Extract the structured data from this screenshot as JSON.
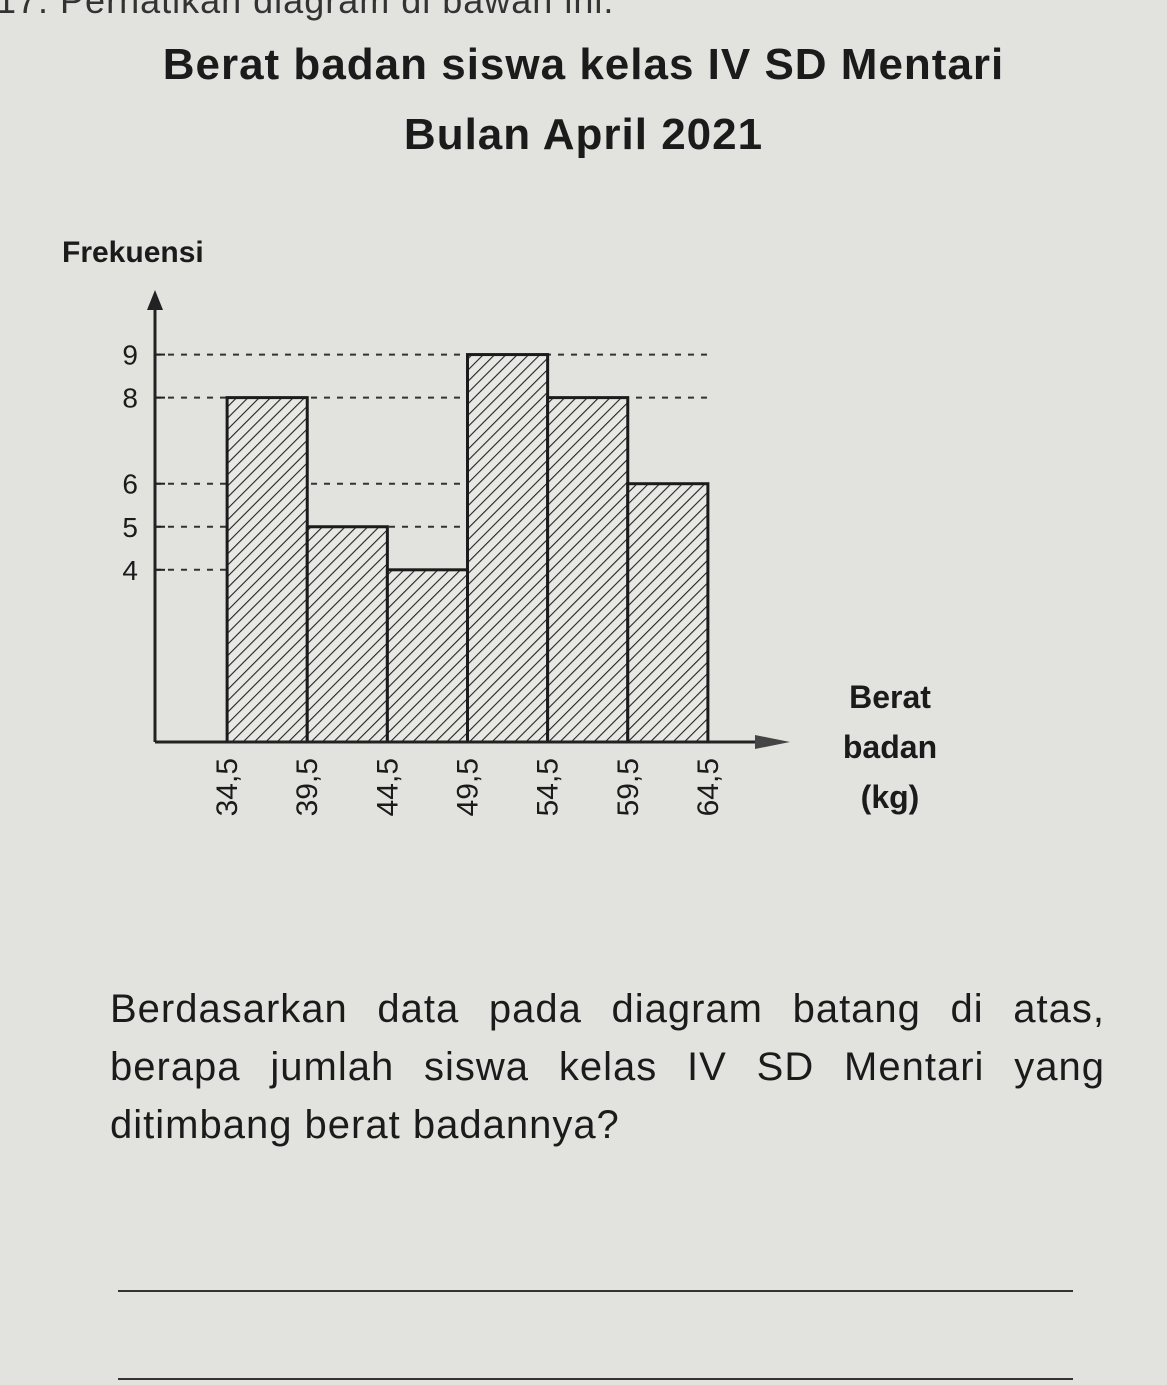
{
  "header": {
    "instruction": "17. Perhatikan diagram di bawah ini."
  },
  "chart_data": {
    "type": "histogram",
    "title": "Berat badan siswa kelas IV SD Mentari",
    "subtitle": "Bulan April 2021",
    "y_label": "Frekuensi",
    "x_label": "Berat badan (kg)",
    "bins": [
      {
        "value": 34.5,
        "label": "34,5"
      },
      {
        "value": 39.5,
        "label": "39,5"
      },
      {
        "value": 44.5,
        "label": "44,5"
      },
      {
        "value": 49.5,
        "label": "49,5"
      },
      {
        "value": 54.5,
        "label": "54,5"
      },
      {
        "value": 59.5,
        "label": "59,5"
      },
      {
        "value": 64.5,
        "label": "64,5"
      }
    ],
    "values": [
      8,
      5,
      4,
      9,
      8,
      6
    ],
    "xlim": [
      30,
      69
    ],
    "ylim": [
      0,
      10.5
    ],
    "yticks": [
      4,
      5,
      6,
      8,
      9
    ],
    "grid": true,
    "color": "#1b1b1b"
  },
  "question": "Berdasarkan data pada diagram batang di atas, berapa jumlah siswa kelas IV SD Mentari yang ditimbang berat badannya?"
}
